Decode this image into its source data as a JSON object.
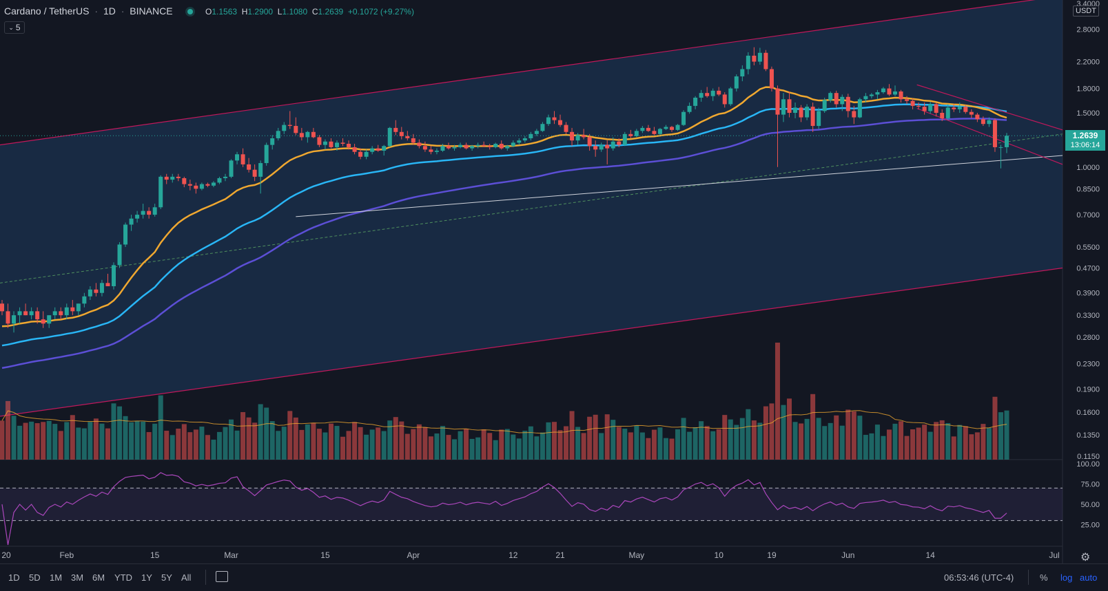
{
  "header": {
    "symbol": "Cardano / TetherUS",
    "interval": "1D",
    "exchange": "BINANCE",
    "open_label": "O",
    "open": "1.1563",
    "high_label": "H",
    "high": "1.2900",
    "low_label": "L",
    "low": "1.1080",
    "close_label": "C",
    "close": "1.2639",
    "change": "+0.1072 (+9.27%)",
    "indicator_count": "5",
    "status_color": "#26a69a"
  },
  "price_scale": {
    "currency": "USDT",
    "labels": [
      "3.4000",
      "2.8000",
      "2.2000",
      "1.8000",
      "1.5000",
      "1.0000",
      "0.8500",
      "0.7000",
      "0.5500",
      "0.4700",
      "0.3900",
      "0.3300",
      "0.2800",
      "0.2300",
      "0.1900",
      "0.1600",
      "0.1350",
      "0.1150"
    ],
    "current_price": "1.2639",
    "countdown": "13:06:14"
  },
  "rsi_scale": {
    "labels": [
      "100.00",
      "75.00",
      "50.00",
      "25.00"
    ]
  },
  "time_axis": {
    "labels": [
      "20",
      "Feb",
      "15",
      "Mar",
      "15",
      "Apr",
      "12",
      "21",
      "May",
      "10",
      "19",
      "Jun",
      "14",
      "Jul"
    ]
  },
  "toolbar": {
    "ranges": [
      "1D",
      "5D",
      "1M",
      "3M",
      "6M",
      "YTD",
      "1Y",
      "5Y",
      "All"
    ],
    "clock": "06:53:46 (UTC-4)",
    "percent_label": "%",
    "log_label": "log",
    "auto_label": "auto"
  },
  "colors": {
    "background": "#131722",
    "up": "#26a69a",
    "down": "#ef5350",
    "ma_fast": "#f0a830",
    "ma_mid": "#29b6f6",
    "ma_slow": "#5c4fd6",
    "channel": "#c2185b",
    "rsi": "#ab47bc"
  },
  "chart_data": {
    "type": "candlestick",
    "scale": "log",
    "ylim": [
      0.11,
      3.4
    ],
    "x_ticks": [
      "20",
      "Feb",
      "15",
      "Mar",
      "15",
      "Apr",
      "12",
      "21",
      "May",
      "10",
      "19",
      "Jun",
      "14",
      "Jul"
    ],
    "candles": [
      [
        0.36,
        0.37,
        0.33,
        0.34
      ],
      [
        0.34,
        0.36,
        0.3,
        0.31
      ],
      [
        0.31,
        0.34,
        0.29,
        0.33
      ],
      [
        0.33,
        0.35,
        0.31,
        0.34
      ],
      [
        0.34,
        0.36,
        0.33,
        0.33
      ],
      [
        0.33,
        0.35,
        0.32,
        0.34
      ],
      [
        0.34,
        0.35,
        0.31,
        0.32
      ],
      [
        0.32,
        0.34,
        0.3,
        0.31
      ],
      [
        0.31,
        0.33,
        0.3,
        0.33
      ],
      [
        0.33,
        0.35,
        0.32,
        0.34
      ],
      [
        0.34,
        0.35,
        0.32,
        0.33
      ],
      [
        0.33,
        0.36,
        0.32,
        0.35
      ],
      [
        0.35,
        0.37,
        0.33,
        0.34
      ],
      [
        0.34,
        0.36,
        0.33,
        0.36
      ],
      [
        0.36,
        0.39,
        0.35,
        0.38
      ],
      [
        0.38,
        0.41,
        0.37,
        0.4
      ],
      [
        0.4,
        0.42,
        0.38,
        0.39
      ],
      [
        0.39,
        0.43,
        0.38,
        0.42
      ],
      [
        0.42,
        0.45,
        0.41,
        0.41
      ],
      [
        0.41,
        0.49,
        0.4,
        0.48
      ],
      [
        0.48,
        0.57,
        0.47,
        0.56
      ],
      [
        0.56,
        0.66,
        0.55,
        0.65
      ],
      [
        0.65,
        0.7,
        0.62,
        0.68
      ],
      [
        0.68,
        0.72,
        0.66,
        0.7
      ],
      [
        0.7,
        0.76,
        0.68,
        0.72
      ],
      [
        0.72,
        0.74,
        0.68,
        0.7
      ],
      [
        0.7,
        0.76,
        0.69,
        0.74
      ],
      [
        0.74,
        0.94,
        0.73,
        0.93
      ],
      [
        0.93,
        0.95,
        0.88,
        0.91
      ],
      [
        0.91,
        0.95,
        0.89,
        0.93
      ],
      [
        0.93,
        0.95,
        0.9,
        0.92
      ],
      [
        0.92,
        0.93,
        0.86,
        0.88
      ],
      [
        0.88,
        0.91,
        0.84,
        0.87
      ],
      [
        0.87,
        0.89,
        0.82,
        0.85
      ],
      [
        0.85,
        0.89,
        0.84,
        0.88
      ],
      [
        0.88,
        0.89,
        0.86,
        0.87
      ],
      [
        0.87,
        0.9,
        0.86,
        0.89
      ],
      [
        0.89,
        0.93,
        0.88,
        0.92
      ],
      [
        0.92,
        0.95,
        0.9,
        0.93
      ],
      [
        0.93,
        1.06,
        0.92,
        1.05
      ],
      [
        1.05,
        1.12,
        1.02,
        1.1
      ],
      [
        1.1,
        1.15,
        1.0,
        1.02
      ],
      [
        1.02,
        1.07,
        0.96,
        0.98
      ],
      [
        0.98,
        1.02,
        0.9,
        0.93
      ],
      [
        0.93,
        1.05,
        0.82,
        1.03
      ],
      [
        1.03,
        1.2,
        1.01,
        1.18
      ],
      [
        1.18,
        1.27,
        1.14,
        1.24
      ],
      [
        1.24,
        1.34,
        1.22,
        1.31
      ],
      [
        1.31,
        1.4,
        1.28,
        1.37
      ],
      [
        1.37,
        1.52,
        1.33,
        1.36
      ],
      [
        1.36,
        1.45,
        1.27,
        1.29
      ],
      [
        1.29,
        1.34,
        1.22,
        1.25
      ],
      [
        1.25,
        1.31,
        1.2,
        1.3
      ],
      [
        1.3,
        1.34,
        1.24,
        1.25
      ],
      [
        1.25,
        1.27,
        1.16,
        1.18
      ],
      [
        1.18,
        1.23,
        1.14,
        1.21
      ],
      [
        1.21,
        1.24,
        1.15,
        1.16
      ],
      [
        1.16,
        1.22,
        1.13,
        1.2
      ],
      [
        1.2,
        1.24,
        1.17,
        1.19
      ],
      [
        1.19,
        1.22,
        1.14,
        1.16
      ],
      [
        1.16,
        1.19,
        1.1,
        1.12
      ],
      [
        1.12,
        1.15,
        1.06,
        1.08
      ],
      [
        1.08,
        1.14,
        1.06,
        1.12
      ],
      [
        1.12,
        1.17,
        1.1,
        1.15
      ],
      [
        1.15,
        1.18,
        1.12,
        1.13
      ],
      [
        1.13,
        1.18,
        1.09,
        1.17
      ],
      [
        1.17,
        1.35,
        1.16,
        1.34
      ],
      [
        1.34,
        1.42,
        1.27,
        1.3
      ],
      [
        1.3,
        1.35,
        1.23,
        1.26
      ],
      [
        1.26,
        1.31,
        1.22,
        1.24
      ],
      [
        1.24,
        1.28,
        1.18,
        1.2
      ],
      [
        1.2,
        1.23,
        1.15,
        1.17
      ],
      [
        1.17,
        1.21,
        1.12,
        1.14
      ],
      [
        1.14,
        1.17,
        1.1,
        1.12
      ],
      [
        1.12,
        1.15,
        1.1,
        1.13
      ],
      [
        1.13,
        1.19,
        1.12,
        1.17
      ],
      [
        1.17,
        1.2,
        1.14,
        1.15
      ],
      [
        1.15,
        1.18,
        1.13,
        1.16
      ],
      [
        1.16,
        1.2,
        1.15,
        1.18
      ],
      [
        1.18,
        1.2,
        1.14,
        1.15
      ],
      [
        1.15,
        1.18,
        1.13,
        1.17
      ],
      [
        1.17,
        1.2,
        1.15,
        1.18
      ],
      [
        1.18,
        1.21,
        1.16,
        1.17
      ],
      [
        1.17,
        1.19,
        1.14,
        1.16
      ],
      [
        1.16,
        1.2,
        1.15,
        1.19
      ],
      [
        1.19,
        1.22,
        1.14,
        1.15
      ],
      [
        1.15,
        1.18,
        1.13,
        1.17
      ],
      [
        1.17,
        1.22,
        1.16,
        1.2
      ],
      [
        1.2,
        1.24,
        1.18,
        1.22
      ],
      [
        1.22,
        1.26,
        1.2,
        1.24
      ],
      [
        1.24,
        1.3,
        1.22,
        1.28
      ],
      [
        1.28,
        1.33,
        1.26,
        1.31
      ],
      [
        1.31,
        1.4,
        1.3,
        1.38
      ],
      [
        1.38,
        1.48,
        1.36,
        1.45
      ],
      [
        1.45,
        1.52,
        1.38,
        1.42
      ],
      [
        1.42,
        1.48,
        1.35,
        1.37
      ],
      [
        1.37,
        1.4,
        1.28,
        1.3
      ],
      [
        1.3,
        1.34,
        1.17,
        1.22
      ],
      [
        1.22,
        1.29,
        1.18,
        1.27
      ],
      [
        1.27,
        1.33,
        1.23,
        1.25
      ],
      [
        1.25,
        1.28,
        1.13,
        1.17
      ],
      [
        1.17,
        1.22,
        1.08,
        1.14
      ],
      [
        1.14,
        1.2,
        1.12,
        1.18
      ],
      [
        1.18,
        1.22,
        1.02,
        1.15
      ],
      [
        1.15,
        1.25,
        1.13,
        1.21
      ],
      [
        1.21,
        1.24,
        1.16,
        1.18
      ],
      [
        1.18,
        1.3,
        1.17,
        1.28
      ],
      [
        1.28,
        1.32,
        1.24,
        1.26
      ],
      [
        1.26,
        1.33,
        1.25,
        1.31
      ],
      [
        1.31,
        1.36,
        1.29,
        1.34
      ],
      [
        1.34,
        1.37,
        1.3,
        1.31
      ],
      [
        1.31,
        1.35,
        1.27,
        1.28
      ],
      [
        1.28,
        1.34,
        1.27,
        1.33
      ],
      [
        1.33,
        1.37,
        1.32,
        1.35
      ],
      [
        1.35,
        1.36,
        1.3,
        1.32
      ],
      [
        1.32,
        1.38,
        1.31,
        1.37
      ],
      [
        1.37,
        1.53,
        1.36,
        1.51
      ],
      [
        1.51,
        1.62,
        1.49,
        1.58
      ],
      [
        1.58,
        1.7,
        1.54,
        1.68
      ],
      [
        1.68,
        1.78,
        1.63,
        1.74
      ],
      [
        1.74,
        1.82,
        1.68,
        1.7
      ],
      [
        1.7,
        1.8,
        1.64,
        1.77
      ],
      [
        1.77,
        1.82,
        1.7,
        1.72
      ],
      [
        1.72,
        1.75,
        1.56,
        1.6
      ],
      [
        1.6,
        1.82,
        1.58,
        1.8
      ],
      [
        1.8,
        2.0,
        1.76,
        1.97
      ],
      [
        1.97,
        2.14,
        1.9,
        2.08
      ],
      [
        2.08,
        2.36,
        2.0,
        2.3
      ],
      [
        2.3,
        2.45,
        2.14,
        2.2
      ],
      [
        2.2,
        2.44,
        2.15,
        2.35
      ],
      [
        2.35,
        2.4,
        2.05,
        2.08
      ],
      [
        2.08,
        2.12,
        1.76,
        1.8
      ],
      [
        1.8,
        1.84,
        1.0,
        1.48
      ],
      [
        1.48,
        1.74,
        1.4,
        1.66
      ],
      [
        1.66,
        1.76,
        1.45,
        1.5
      ],
      [
        1.5,
        1.62,
        1.44,
        1.56
      ],
      [
        1.56,
        1.59,
        1.4,
        1.45
      ],
      [
        1.45,
        1.6,
        1.42,
        1.57
      ],
      [
        1.57,
        1.62,
        1.3,
        1.36
      ],
      [
        1.36,
        1.56,
        1.33,
        1.52
      ],
      [
        1.52,
        1.68,
        1.5,
        1.65
      ],
      [
        1.65,
        1.76,
        1.62,
        1.74
      ],
      [
        1.74,
        1.77,
        1.56,
        1.6
      ],
      [
        1.6,
        1.72,
        1.52,
        1.69
      ],
      [
        1.69,
        1.73,
        1.45,
        1.52
      ],
      [
        1.52,
        1.58,
        1.38,
        1.45
      ],
      [
        1.45,
        1.68,
        1.44,
        1.66
      ],
      [
        1.66,
        1.74,
        1.62,
        1.7
      ],
      [
        1.7,
        1.74,
        1.67,
        1.72
      ],
      [
        1.72,
        1.78,
        1.66,
        1.75
      ],
      [
        1.75,
        1.82,
        1.73,
        1.8
      ],
      [
        1.8,
        1.86,
        1.7,
        1.72
      ],
      [
        1.72,
        1.84,
        1.7,
        1.76
      ],
      [
        1.76,
        1.78,
        1.62,
        1.66
      ],
      [
        1.66,
        1.7,
        1.6,
        1.64
      ],
      [
        1.64,
        1.67,
        1.54,
        1.58
      ],
      [
        1.58,
        1.62,
        1.54,
        1.57
      ],
      [
        1.57,
        1.62,
        1.48,
        1.52
      ],
      [
        1.52,
        1.63,
        1.49,
        1.6
      ],
      [
        1.6,
        1.62,
        1.46,
        1.5
      ],
      [
        1.5,
        1.54,
        1.41,
        1.44
      ],
      [
        1.44,
        1.6,
        1.42,
        1.56
      ],
      [
        1.56,
        1.6,
        1.51,
        1.54
      ],
      [
        1.54,
        1.62,
        1.5,
        1.57
      ],
      [
        1.57,
        1.59,
        1.49,
        1.51
      ],
      [
        1.51,
        1.54,
        1.44,
        1.48
      ],
      [
        1.48,
        1.5,
        1.4,
        1.43
      ],
      [
        1.43,
        1.46,
        1.36,
        1.38
      ],
      [
        1.38,
        1.45,
        1.35,
        1.42
      ],
      [
        1.42,
        1.44,
        1.12,
        1.16
      ],
      [
        1.16,
        1.18,
        0.99,
        1.16
      ],
      [
        1.16,
        1.29,
        1.11,
        1.2639
      ]
    ],
    "volume_ma_note": "",
    "rsi_levels": [
      70,
      30
    ],
    "rsi_ylim": [
      0,
      100
    ]
  }
}
